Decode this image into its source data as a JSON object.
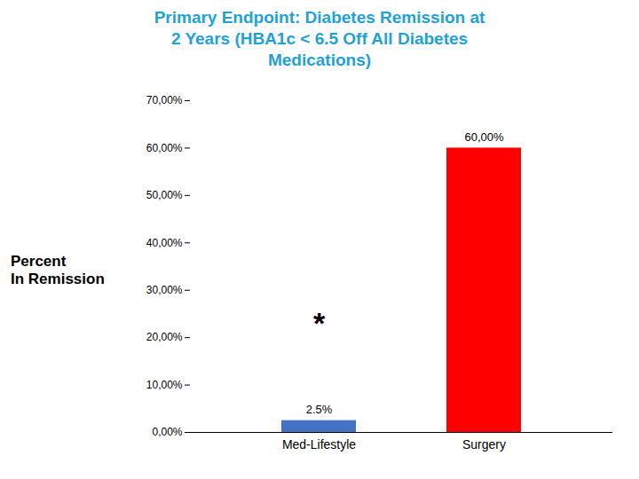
{
  "chart_data": {
    "type": "bar",
    "title": "Primary Endpoint: Diabetes Remission at\n2 Years (HBA1c < 6.5 Off All Diabetes\nMedications)",
    "ylabel": "Percent\nIn Remission",
    "categories": [
      "Med-Lifestyle",
      "Surgery"
    ],
    "values": [
      2.5,
      60.0
    ],
    "value_labels": [
      "2.5%",
      "60,00%"
    ],
    "data_labels": true,
    "colors": [
      "#4472c4",
      "#ff0000"
    ],
    "ylim": [
      0,
      70
    ],
    "yticks": [
      {
        "value": 0,
        "label": "0,00%"
      },
      {
        "value": 10,
        "label": "10,00%"
      },
      {
        "value": 20,
        "label": "20,00%"
      },
      {
        "value": 30,
        "label": "30,00%"
      },
      {
        "value": 40,
        "label": "40,00%"
      },
      {
        "value": 50,
        "label": "50,00%"
      },
      {
        "value": 60,
        "label": "60,00%"
      },
      {
        "value": 70,
        "label": "70,00%"
      }
    ],
    "grid": false,
    "annotations": [
      {
        "text": "*",
        "x": "Med-Lifestyle",
        "y": 23
      }
    ]
  }
}
